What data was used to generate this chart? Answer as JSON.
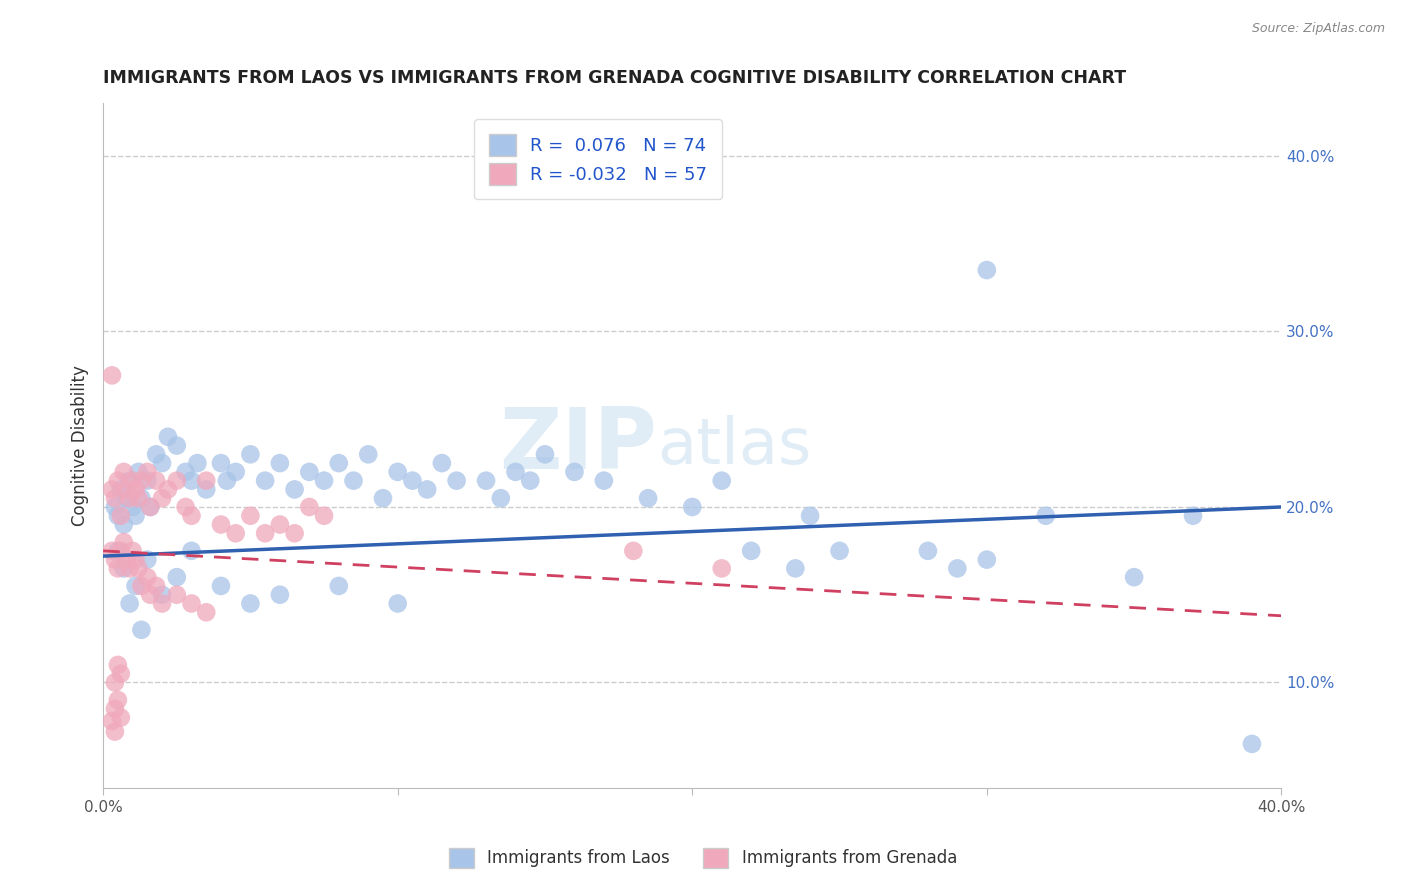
{
  "title": "IMMIGRANTS FROM LAOS VS IMMIGRANTS FROM GRENADA COGNITIVE DISABILITY CORRELATION CHART",
  "source": "Source: ZipAtlas.com",
  "ylabel": "Cognitive Disability",
  "xlim": [
    0.0,
    0.4
  ],
  "ylim": [
    0.04,
    0.43
  ],
  "legend_r_laos": "0.076",
  "legend_n_laos": "74",
  "legend_r_grenada": "-0.032",
  "legend_n_grenada": "57",
  "color_laos": "#a8c4e8",
  "color_grenada": "#f0a8bc",
  "line_color_laos": "#3060b0",
  "line_color_grenada": "#d04060",
  "watermark_zip": "ZIP",
  "watermark_atlas": "atlas",
  "laos_line_x0": 0.0,
  "laos_line_y0": 0.172,
  "laos_line_x1": 0.4,
  "laos_line_y1": 0.2,
  "grenada_line_x0": 0.0,
  "grenada_line_y0": 0.175,
  "grenada_line_x1": 0.4,
  "grenada_line_y1": 0.138,
  "laos_x": [
    0.004,
    0.005,
    0.006,
    0.007,
    0.008,
    0.009,
    0.01,
    0.011,
    0.012,
    0.013,
    0.015,
    0.016,
    0.018,
    0.02,
    0.022,
    0.025,
    0.028,
    0.03,
    0.032,
    0.035,
    0.04,
    0.042,
    0.045,
    0.05,
    0.055,
    0.06,
    0.065,
    0.07,
    0.075,
    0.08,
    0.085,
    0.09,
    0.095,
    0.1,
    0.105,
    0.11,
    0.115,
    0.12,
    0.13,
    0.135,
    0.14,
    0.145,
    0.15,
    0.16,
    0.17,
    0.185,
    0.2,
    0.21,
    0.22,
    0.235,
    0.24,
    0.25,
    0.28,
    0.29,
    0.3,
    0.32,
    0.35,
    0.37,
    0.005,
    0.007,
    0.009,
    0.011,
    0.013,
    0.015,
    0.02,
    0.025,
    0.03,
    0.04,
    0.05,
    0.06,
    0.08,
    0.1,
    0.3,
    0.39
  ],
  "laos_y": [
    0.2,
    0.195,
    0.21,
    0.19,
    0.205,
    0.215,
    0.2,
    0.195,
    0.22,
    0.205,
    0.215,
    0.2,
    0.23,
    0.225,
    0.24,
    0.235,
    0.22,
    0.215,
    0.225,
    0.21,
    0.225,
    0.215,
    0.22,
    0.23,
    0.215,
    0.225,
    0.21,
    0.22,
    0.215,
    0.225,
    0.215,
    0.23,
    0.205,
    0.22,
    0.215,
    0.21,
    0.225,
    0.215,
    0.215,
    0.205,
    0.22,
    0.215,
    0.23,
    0.22,
    0.215,
    0.205,
    0.2,
    0.215,
    0.175,
    0.165,
    0.195,
    0.175,
    0.175,
    0.165,
    0.17,
    0.195,
    0.16,
    0.195,
    0.175,
    0.165,
    0.145,
    0.155,
    0.13,
    0.17,
    0.15,
    0.16,
    0.175,
    0.155,
    0.145,
    0.15,
    0.155,
    0.145,
    0.335,
    0.065
  ],
  "grenada_x": [
    0.003,
    0.004,
    0.005,
    0.006,
    0.007,
    0.008,
    0.009,
    0.01,
    0.011,
    0.012,
    0.013,
    0.015,
    0.016,
    0.018,
    0.02,
    0.022,
    0.025,
    0.028,
    0.03,
    0.035,
    0.04,
    0.045,
    0.05,
    0.055,
    0.06,
    0.065,
    0.07,
    0.075,
    0.003,
    0.004,
    0.005,
    0.006,
    0.007,
    0.008,
    0.009,
    0.01,
    0.011,
    0.012,
    0.013,
    0.015,
    0.016,
    0.018,
    0.02,
    0.025,
    0.03,
    0.035,
    0.004,
    0.005,
    0.006,
    0.004,
    0.005,
    0.006,
    0.003,
    0.004,
    0.003,
    0.18,
    0.21
  ],
  "grenada_y": [
    0.21,
    0.205,
    0.215,
    0.195,
    0.22,
    0.21,
    0.205,
    0.215,
    0.21,
    0.205,
    0.215,
    0.22,
    0.2,
    0.215,
    0.205,
    0.21,
    0.215,
    0.2,
    0.195,
    0.215,
    0.19,
    0.185,
    0.195,
    0.185,
    0.19,
    0.185,
    0.2,
    0.195,
    0.175,
    0.17,
    0.165,
    0.175,
    0.18,
    0.17,
    0.165,
    0.175,
    0.17,
    0.165,
    0.155,
    0.16,
    0.15,
    0.155,
    0.145,
    0.15,
    0.145,
    0.14,
    0.1,
    0.11,
    0.105,
    0.085,
    0.09,
    0.08,
    0.078,
    0.072,
    0.275,
    0.175,
    0.165
  ]
}
